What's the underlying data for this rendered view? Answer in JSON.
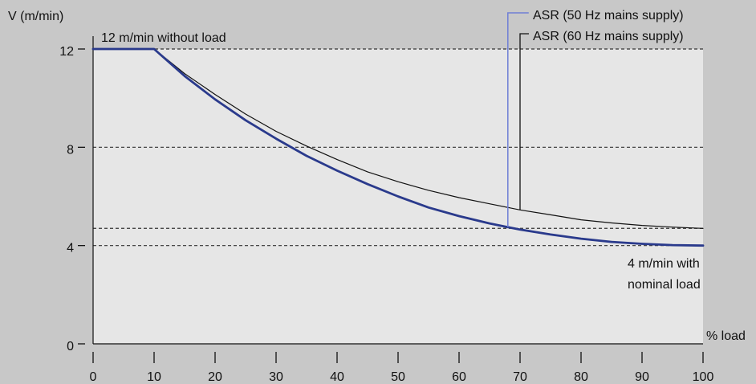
{
  "chart_data": {
    "type": "line",
    "ylabel": "V (m/min)",
    "xlabel": "% load",
    "xlim": [
      0,
      100
    ],
    "ylim": [
      0,
      12
    ],
    "x_ticks": [
      0,
      10,
      20,
      30,
      40,
      50,
      60,
      70,
      80,
      90,
      100
    ],
    "y_ticks": [
      0,
      4,
      8,
      12
    ],
    "dashed_reference_lines": [
      12,
      8,
      4.7,
      4
    ],
    "grid": false,
    "legend_position": "top-right",
    "series": [
      {
        "name": "ASR (50 Hz mains supply)",
        "color": "#2a3a8c",
        "x": [
          0,
          10,
          15,
          20,
          25,
          30,
          35,
          40,
          45,
          50,
          55,
          60,
          65,
          68,
          70,
          75,
          80,
          85,
          90,
          95,
          100
        ],
        "y": [
          12,
          12,
          10.9,
          9.95,
          9.1,
          8.35,
          7.65,
          7.05,
          6.5,
          6.0,
          5.55,
          5.2,
          4.9,
          4.75,
          4.65,
          4.45,
          4.28,
          4.15,
          4.07,
          4.02,
          4.0
        ]
      },
      {
        "name": "ASR (60 Hz mains supply)",
        "color": "#111111",
        "x": [
          0,
          10,
          15,
          20,
          25,
          30,
          35,
          40,
          45,
          50,
          55,
          60,
          65,
          70,
          75,
          80,
          85,
          90,
          95,
          100
        ],
        "y": [
          12,
          12,
          11.0,
          10.15,
          9.35,
          8.65,
          8.05,
          7.5,
          7.0,
          6.6,
          6.25,
          5.95,
          5.7,
          5.45,
          5.25,
          5.05,
          4.92,
          4.82,
          4.75,
          4.7
        ]
      }
    ],
    "legend_markers": [
      {
        "series": 0,
        "x": 68,
        "y": 4.75
      },
      {
        "series": 1,
        "x": 70,
        "y": 5.45
      }
    ],
    "annotations": [
      {
        "text": "12 m/min without load"
      },
      {
        "text": "4 m/min with"
      },
      {
        "text": "nominal load"
      }
    ]
  },
  "colors": {
    "background": "#c8c8c8",
    "plot_area": "#e6e6e6",
    "dashed_line": "#333333",
    "series_50hz": "#2a3a8c",
    "series_60hz": "#111111",
    "legend_50hz_line": "#6f7fd6"
  }
}
